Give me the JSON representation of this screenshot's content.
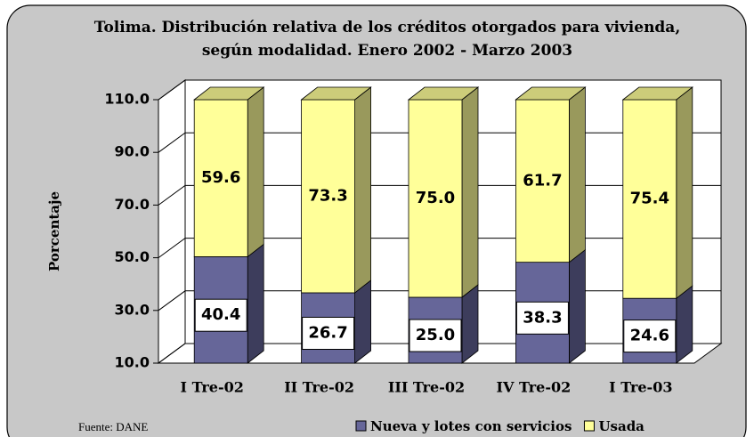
{
  "chart_data": {
    "type": "stacked_bar_3d",
    "title": "Tolima.  Distribución relativa de los créditos otorgados para vivienda, según modalidad. Enero 2002 - Marzo 2003",
    "y_label": "Porcentaje",
    "source": "Fuente: DANE",
    "categories": [
      "I Tre-02",
      "II Tre-02",
      "III Tre-02",
      "IV Tre-02",
      "I Tre-03"
    ],
    "series": [
      {
        "name": "Nueva y lotes con servicios",
        "color": "#666699",
        "values": [
          40.4,
          26.7,
          25.0,
          38.3,
          24.6
        ],
        "value_labels": [
          "40.4",
          "26.7",
          "25.0",
          "38.3",
          "24.6"
        ]
      },
      {
        "name": "Usada",
        "color": "#ffff99",
        "values": [
          59.6,
          73.3,
          75.0,
          61.7,
          75.4
        ],
        "value_labels": [
          "59.6",
          "73.3",
          "75.0",
          "61.7",
          "75.4"
        ]
      }
    ],
    "ylim": [
      10,
      110
    ],
    "yticks": [
      {
        "value": 10,
        "label": "10.0"
      },
      {
        "value": 30,
        "label": "30.0"
      },
      {
        "value": 50,
        "label": "50.0"
      },
      {
        "value": 70,
        "label": "70.0"
      },
      {
        "value": 90,
        "label": "90.0"
      },
      {
        "value": 110,
        "label": "110.0"
      }
    ],
    "grid": true,
    "legend": "bottom"
  }
}
